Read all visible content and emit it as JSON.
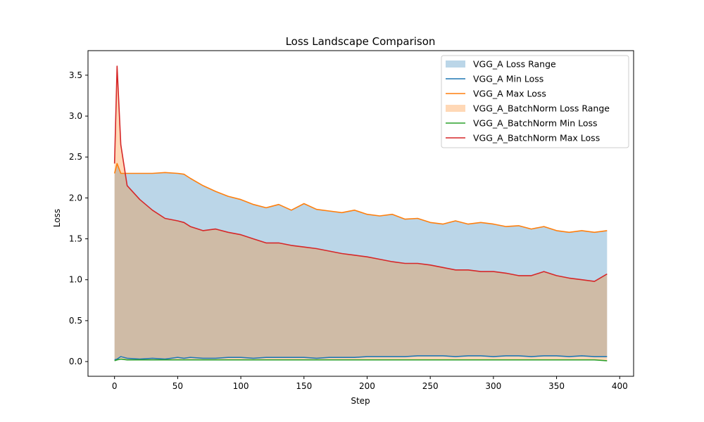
{
  "chart_data": {
    "type": "area",
    "title": "Loss Landscape Comparison",
    "xlabel": "Step",
    "ylabel": "Loss",
    "xlim": [
      -21,
      411
    ],
    "ylim": [
      -0.18,
      3.8
    ],
    "x_ticks": [
      0,
      50,
      100,
      150,
      200,
      250,
      300,
      350,
      400
    ],
    "y_ticks": [
      0.0,
      0.5,
      1.0,
      1.5,
      2.0,
      2.5,
      3.0,
      3.5
    ],
    "x_tick_labels": [
      "0",
      "50",
      "100",
      "150",
      "200",
      "250",
      "300",
      "350",
      "400"
    ],
    "y_tick_labels": [
      "0.0",
      "0.5",
      "1.0",
      "1.5",
      "2.0",
      "2.5",
      "3.0",
      "3.5"
    ],
    "grid": false,
    "legend_position": "top-right",
    "x": [
      0,
      2,
      5,
      10,
      20,
      30,
      40,
      50,
      55,
      60,
      70,
      80,
      90,
      100,
      110,
      120,
      130,
      140,
      150,
      160,
      170,
      180,
      190,
      200,
      210,
      220,
      230,
      240,
      250,
      260,
      270,
      280,
      290,
      300,
      310,
      320,
      330,
      340,
      350,
      360,
      370,
      380,
      390
    ],
    "series": [
      {
        "name": "VGG_A Min Loss",
        "color": "#1f77b4",
        "values": [
          0.02,
          0.03,
          0.06,
          0.04,
          0.03,
          0.04,
          0.03,
          0.05,
          0.04,
          0.05,
          0.04,
          0.04,
          0.05,
          0.05,
          0.04,
          0.05,
          0.05,
          0.05,
          0.05,
          0.04,
          0.05,
          0.05,
          0.05,
          0.06,
          0.06,
          0.06,
          0.06,
          0.07,
          0.07,
          0.07,
          0.06,
          0.07,
          0.07,
          0.06,
          0.07,
          0.07,
          0.06,
          0.07,
          0.07,
          0.06,
          0.07,
          0.06,
          0.06
        ]
      },
      {
        "name": "VGG_A Max Loss",
        "color": "#ff7f0e",
        "values": [
          2.3,
          2.42,
          2.3,
          2.3,
          2.3,
          2.3,
          2.31,
          2.3,
          2.29,
          2.24,
          2.15,
          2.08,
          2.02,
          1.98,
          1.92,
          1.88,
          1.92,
          1.85,
          1.93,
          1.86,
          1.84,
          1.82,
          1.85,
          1.8,
          1.78,
          1.8,
          1.74,
          1.75,
          1.7,
          1.68,
          1.72,
          1.68,
          1.7,
          1.68,
          1.65,
          1.66,
          1.62,
          1.65,
          1.6,
          1.58,
          1.6,
          1.58,
          1.6
        ]
      },
      {
        "name": "VGG_A_BatchNorm Min Loss",
        "color": "#2ca02c",
        "values": [
          0.01,
          0.02,
          0.03,
          0.02,
          0.02,
          0.02,
          0.02,
          0.02,
          0.02,
          0.02,
          0.02,
          0.02,
          0.02,
          0.02,
          0.02,
          0.02,
          0.02,
          0.02,
          0.02,
          0.02,
          0.02,
          0.02,
          0.02,
          0.02,
          0.02,
          0.02,
          0.02,
          0.02,
          0.02,
          0.02,
          0.02,
          0.02,
          0.02,
          0.02,
          0.02,
          0.02,
          0.02,
          0.02,
          0.02,
          0.02,
          0.02,
          0.02,
          0.01
        ]
      },
      {
        "name": "VGG_A_BatchNorm Max Loss",
        "color": "#d62728",
        "values": [
          2.42,
          3.61,
          2.65,
          2.15,
          1.98,
          1.85,
          1.75,
          1.72,
          1.7,
          1.65,
          1.6,
          1.62,
          1.58,
          1.55,
          1.5,
          1.45,
          1.45,
          1.42,
          1.4,
          1.38,
          1.35,
          1.32,
          1.3,
          1.28,
          1.25,
          1.22,
          1.2,
          1.2,
          1.18,
          1.15,
          1.12,
          1.12,
          1.1,
          1.1,
          1.08,
          1.05,
          1.05,
          1.1,
          1.05,
          1.02,
          1.0,
          0.98,
          1.07
        ]
      }
    ],
    "bands": [
      {
        "name": "VGG_A Loss Range",
        "color": "#1f77b4",
        "lower_series": "VGG_A Min Loss",
        "upper_series": "VGG_A Max Loss"
      },
      {
        "name": "VGG_A_BatchNorm Loss Range",
        "color": "#ff7f0e",
        "lower_series": "VGG_A_BatchNorm Min Loss",
        "upper_series": "VGG_A_BatchNorm Max Loss"
      }
    ],
    "legend": [
      {
        "label": "VGG_A Loss Range",
        "kind": "patch",
        "color": "#1f77b4"
      },
      {
        "label": "VGG_A Min Loss",
        "kind": "line",
        "color": "#1f77b4"
      },
      {
        "label": "VGG_A Max Loss",
        "kind": "line",
        "color": "#ff7f0e"
      },
      {
        "label": "VGG_A_BatchNorm Loss Range",
        "kind": "patch",
        "color": "#ff7f0e"
      },
      {
        "label": "VGG_A_BatchNorm Min Loss",
        "kind": "line",
        "color": "#2ca02c"
      },
      {
        "label": "VGG_A_BatchNorm Max Loss",
        "kind": "line",
        "color": "#d62728"
      }
    ]
  }
}
